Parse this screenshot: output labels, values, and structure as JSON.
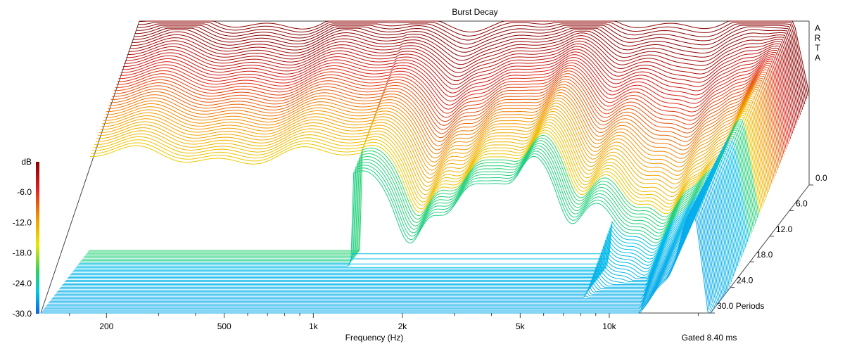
{
  "chart_data": {
    "type": "waterfall",
    "title": "Burst Decay",
    "watermark": "ARTA",
    "xlabel": "Frequency (Hz)",
    "x_scale": "log",
    "x_ticks": [
      {
        "value": 200,
        "label": "200"
      },
      {
        "value": 500,
        "label": "500"
      },
      {
        "value": 1000,
        "label": "1k"
      },
      {
        "value": 2000,
        "label": "2k"
      },
      {
        "value": 5000,
        "label": "5k"
      },
      {
        "value": 10000,
        "label": "10k"
      }
    ],
    "xlim": [
      120,
      22000
    ],
    "colorbar": {
      "label": "dB",
      "ticks": [
        "-6.0",
        "-12.0",
        "-18.0",
        "-24.0",
        "-30.0"
      ],
      "range": [
        -30,
        0
      ]
    },
    "z_axis": {
      "unit": "Periods",
      "ticks": [
        "0.0",
        "6.0",
        "12.0",
        "18.0",
        "24.0",
        "30.0"
      ],
      "range": [
        0,
        30
      ]
    },
    "ylim": [
      -30,
      0
    ],
    "gating": "Gated 8.40 ms",
    "slice_count": 91,
    "colors": {
      "high": "#b01010",
      "mid": "#e8e000",
      "low": "#00b8e8",
      "floor": "#1e7fe6"
    }
  }
}
